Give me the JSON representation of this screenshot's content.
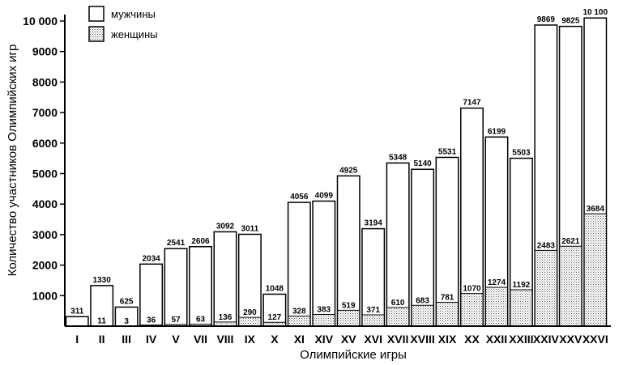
{
  "chart_data": {
    "type": "bar",
    "stacked": true,
    "ylabel": "Количество участников Олимпийских игр",
    "xlabel": "Олимпийские игры",
    "ylim": [
      0,
      10500
    ],
    "yticks": [
      1000,
      2000,
      3000,
      4000,
      5000,
      6000,
      7000,
      8000,
      9000,
      10000
    ],
    "ytick_labels": [
      "1000",
      "2000",
      "3000",
      "4000",
      "5000",
      "6000",
      "7000",
      "8000",
      "9000",
      "10 000"
    ],
    "legend_position": "top-left",
    "categories": [
      "I",
      "II",
      "III",
      "IV",
      "V",
      "VII",
      "VIII",
      "IX",
      "X",
      "XI",
      "XIV",
      "XV",
      "XVI",
      "XVII",
      "XVIII",
      "XIX",
      "XX",
      "XXII",
      "XXIII",
      "XXIV",
      "XXV",
      "XXVI"
    ],
    "totals": [
      311,
      1330,
      625,
      2034,
      2541,
      2606,
      3092,
      3011,
      1048,
      4056,
      4099,
      4925,
      3194,
      5348,
      5140,
      5531,
      7147,
      6199,
      5503,
      9869,
      9825,
      10100
    ],
    "total_labels": [
      "311",
      "1330",
      "625",
      "2034",
      "2541",
      "2606",
      "3092",
      "3011",
      "1048",
      "4056",
      "4099",
      "4925",
      "3194",
      "5348",
      "5140",
      "5531",
      "7147",
      "6199",
      "5503",
      "9869",
      "9825",
      "10 100"
    ],
    "women": [
      0,
      11,
      3,
      36,
      57,
      63,
      136,
      290,
      127,
      328,
      383,
      519,
      371,
      610,
      683,
      781,
      1070,
      1274,
      1192,
      2483,
      2621,
      3684
    ],
    "women_labels": [
      "",
      "11",
      "3",
      "36",
      "57",
      "63",
      "136",
      "290",
      "127",
      "328",
      "383",
      "519",
      "371",
      "610",
      "683",
      "781",
      "1070",
      "1274",
      "1192",
      "2483",
      "2621",
      "3684"
    ],
    "series": [
      {
        "name": "мужчины",
        "color": "#ffffff"
      },
      {
        "name": "женщины",
        "color": "#dcdcdc"
      }
    ]
  }
}
